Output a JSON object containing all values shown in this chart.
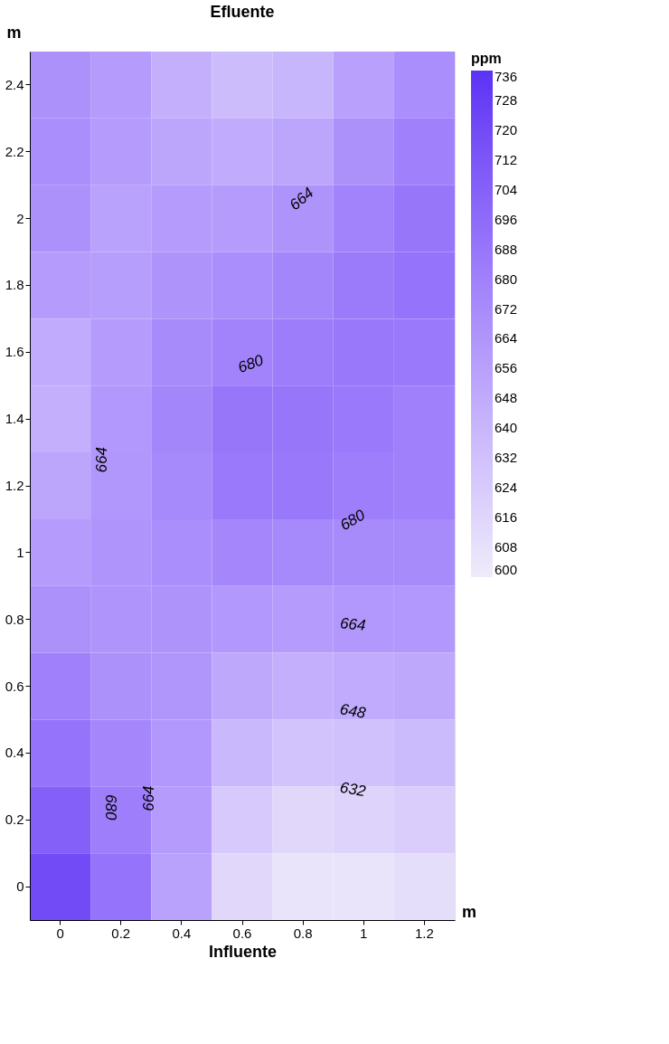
{
  "chart_data": {
    "type": "heatmap",
    "title": "Efluente",
    "xlabel": "Influente",
    "ylabel": "m",
    "legend_title": "ppm",
    "categories": [
      "0",
      "0.2",
      "0.4",
      "0.6",
      "0.8",
      "1",
      "1.2"
    ],
    "y_categories": [
      "2.4",
      "2.2",
      "2",
      "1.8",
      "1.6",
      "1.4",
      "1.2",
      "1",
      "0.8",
      "0.6",
      "0.4",
      "0.2",
      "0"
    ],
    "cells": [
      [
        668,
        660,
        645,
        635,
        640,
        656,
        670
      ],
      [
        670,
        660,
        652,
        648,
        652,
        668,
        680
      ],
      [
        668,
        655,
        660,
        660,
        666,
        678,
        688
      ],
      [
        660,
        658,
        666,
        670,
        676,
        684,
        690
      ],
      [
        648,
        660,
        672,
        678,
        683,
        686,
        685
      ],
      [
        645,
        662,
        676,
        688,
        688,
        685,
        680
      ],
      [
        652,
        663,
        674,
        685,
        686,
        682,
        680
      ],
      [
        660,
        665,
        670,
        675,
        674,
        672,
        672
      ],
      [
        668,
        665,
        666,
        662,
        660,
        662,
        662
      ],
      [
        680,
        668,
        664,
        650,
        645,
        648,
        650
      ],
      [
        690,
        675,
        662,
        638,
        630,
        632,
        636
      ],
      [
        705,
        682,
        660,
        625,
        615,
        618,
        622
      ],
      [
        720,
        690,
        655,
        615,
        605,
        605,
        610
      ]
    ],
    "clim": [
      600,
      736
    ],
    "cticks": [
      600,
      608,
      616,
      624,
      632,
      640,
      648,
      656,
      664,
      672,
      680,
      688,
      696,
      704,
      712,
      720,
      728,
      736
    ],
    "grid": false,
    "annotations": [
      "m",
      "664",
      "680",
      "664",
      "680",
      "664",
      "648",
      "632",
      "680",
      "664"
    ]
  }
}
